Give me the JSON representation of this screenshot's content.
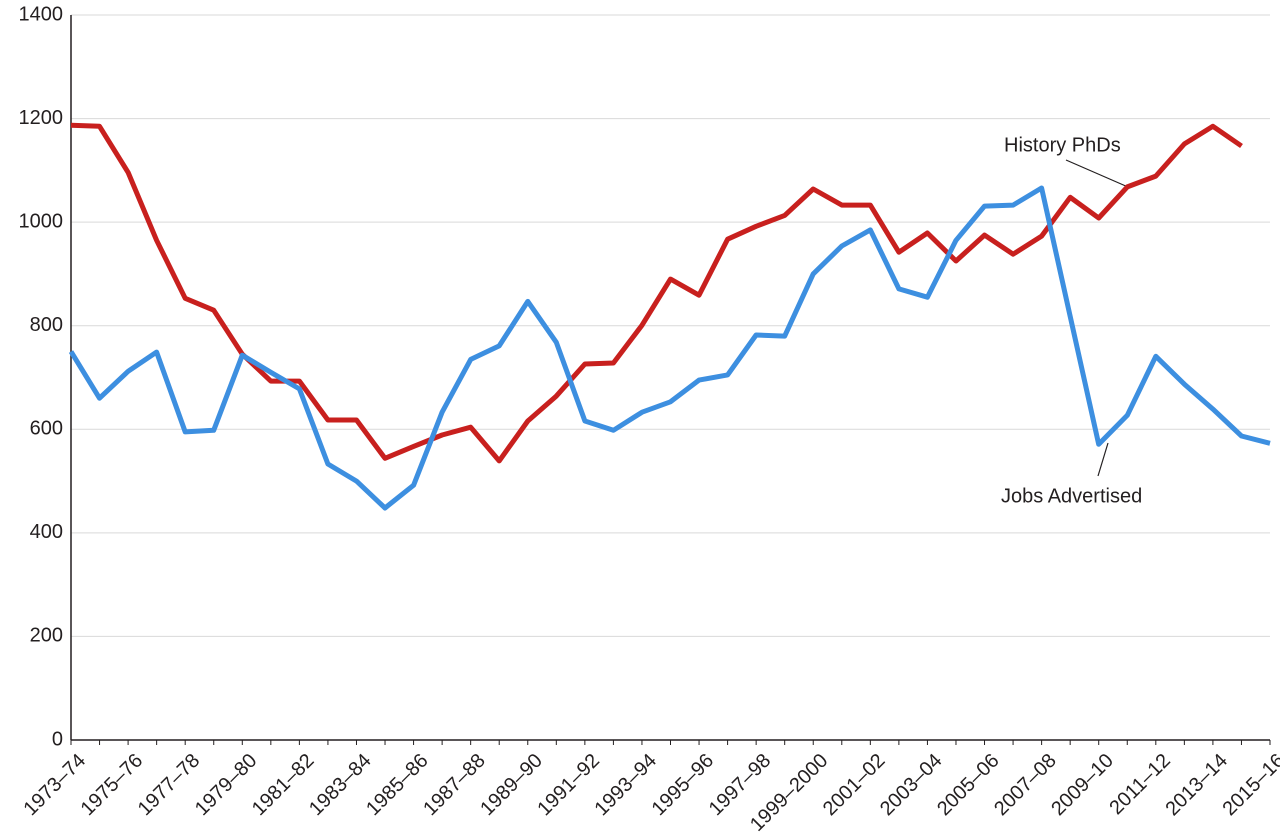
{
  "chart_data": {
    "type": "line",
    "categories": [
      "1973–74",
      null,
      "1975–76",
      null,
      "1977–78",
      null,
      "1979–80",
      null,
      "1981–82",
      null,
      "1983–84",
      null,
      "1985–86",
      null,
      "1987–88",
      null,
      "1989–90",
      null,
      "1991–92",
      null,
      "1993–94",
      null,
      "1995–96",
      null,
      "1997–98",
      null,
      "1999–2000",
      null,
      "2001–02",
      null,
      "2003–04",
      null,
      "2005–06",
      null,
      "2007–08",
      null,
      "2009–10",
      null,
      "2011–12",
      null,
      "2013–14",
      null,
      "2015–16"
    ],
    "series": [
      {
        "name": "History PhDs",
        "color": "#c8201e",
        "values": [
          1187,
          1185,
          1096,
          965,
          853,
          830,
          745,
          693,
          693,
          618,
          618,
          544,
          567,
          589,
          604,
          539,
          616,
          664,
          726,
          728,
          801,
          890,
          859,
          967,
          992,
          1013,
          1064,
          1033,
          1033,
          942,
          979,
          925,
          975,
          938,
          973,
          1048,
          1008,
          1068,
          1089,
          1151,
          1185,
          1147,
          null
        ]
      },
      {
        "name": "Jobs Advertised",
        "color": "#3d8fe0",
        "values": [
          750,
          660,
          712,
          749,
          595,
          598,
          743,
          710,
          678,
          533,
          500,
          448,
          492,
          633,
          735,
          761,
          847,
          768,
          616,
          598,
          633,
          653,
          695,
          705,
          782,
          780,
          900,
          954,
          985,
          871,
          855,
          965,
          1031,
          1033,
          1066,
          818,
          571,
          627,
          741,
          687,
          639,
          587,
          573
        ]
      }
    ],
    "ylim": [
      0,
      1400
    ],
    "yticks": [
      0,
      200,
      400,
      600,
      800,
      1000,
      1200,
      1400
    ],
    "grid": true
  }
}
